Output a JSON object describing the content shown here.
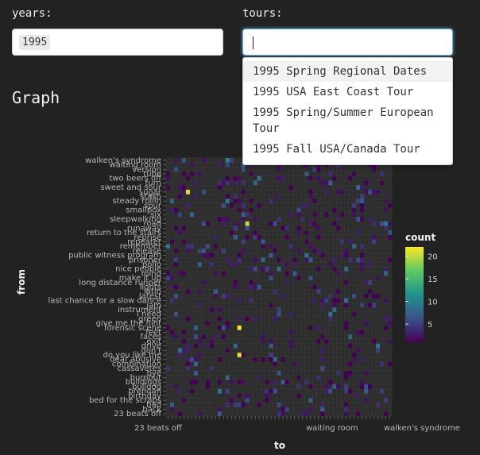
{
  "inputs": {
    "years_label": "years:",
    "years_value": "1995",
    "tours_label": "tours:",
    "tours_value": ""
  },
  "dropdown": {
    "options": [
      "1995 Spring Regional Dates",
      "1995 USA East Coast Tour",
      "1995 Spring/Summer European Tour",
      "1995 Fall USA/Canada Tour"
    ]
  },
  "section": {
    "title": "Graph"
  },
  "chart_data": {
    "type": "heatmap",
    "xlabel": "to",
    "ylabel": "from",
    "legend_title": "count",
    "legend_ticks": [
      5,
      10,
      15,
      20
    ],
    "legend_range": [
      1,
      22
    ],
    "y_tick_labels": [
      "walken's syndrome",
      "waiting room",
      "version",
      "tube",
      "two beers off",
      "turn",
      "sweet and sour",
      "sugar",
      "stash",
      "steady rollin",
      "spur",
      "smallpox",
      "six",
      "sleepwalking",
      "road",
      "runaway",
      "return to the stairs",
      "reprise",
      "repeater",
      "remember",
      "release",
      "public witness program",
      "prisoner",
      "polio",
      "nice people",
      "mind",
      "make it up",
      "long distance runner",
      "lights",
      "latin",
      "latest",
      "last chance for a slow dance",
      "jam",
      "instrument",
      "i need",
      "green",
      "give me the hint",
      "forensic scene",
      "feet",
      "faces",
      "exit",
      "drive",
      "don't",
      "do you like me",
      "dear abusive",
      "combination",
      "cassavetes",
      "bye",
      "burnout",
      "buildings",
      "bulldog",
      "brendan",
      "birthday",
      "bed for the scraps",
      "bad",
      "back",
      "23 beats off"
    ],
    "x_tick_label_sample": [
      "23 beats off",
      "waiting room",
      "walken's syndrome"
    ],
    "notable_cells": [
      {
        "from": "sugar",
        "to": "turn",
        "count": 21
      },
      {
        "from": "road",
        "to": "release",
        "count": 20
      },
      {
        "from": "forensic scene",
        "to": "repeater",
        "count": 22
      },
      {
        "from": "do you like me",
        "to": "repeater",
        "count": 21
      }
    ]
  },
  "colors": {
    "background": "#222222",
    "panel": "#2e2e2e",
    "grid": "#3a3a3a",
    "accent_focus": "#66afe9"
  }
}
